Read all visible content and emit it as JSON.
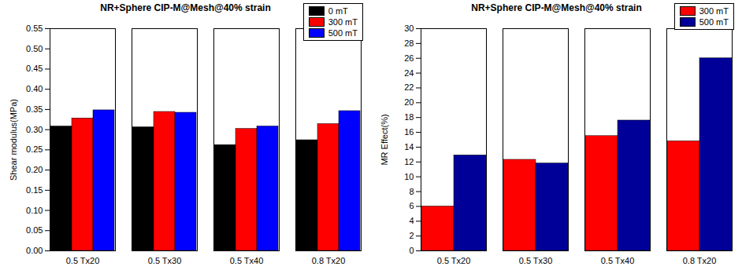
{
  "chart_data": [
    {
      "type": "bar",
      "title": "NR+Sphere CIP-M@Mesh@40% strain",
      "y_label": "Shear modulus(MPa)",
      "categories": [
        "0.5 Tx20",
        "0.5 Tx30",
        "0.5 Tx40",
        "0.8 Tx20"
      ],
      "series": [
        {
          "name": "0 mT",
          "color": "#000000",
          "values": [
            0.308,
            0.306,
            0.262,
            0.274
          ]
        },
        {
          "name": "300 mT",
          "color": "#ff0000",
          "values": [
            0.328,
            0.344,
            0.302,
            0.314
          ]
        },
        {
          "name": "500 mT",
          "color": "#0000ff",
          "values": [
            0.348,
            0.342,
            0.308,
            0.346
          ]
        }
      ],
      "ylim": [
        0,
        0.55
      ],
      "yticks": [
        {
          "value": 0,
          "label": "0.00"
        },
        {
          "value": 0.05,
          "label": "0.05"
        },
        {
          "value": 0.1,
          "label": "0.10"
        },
        {
          "value": 0.15,
          "label": "0.15"
        },
        {
          "value": 0.2,
          "label": "0.20"
        },
        {
          "value": 0.25,
          "label": "0.25"
        },
        {
          "value": 0.3,
          "label": "0.30"
        },
        {
          "value": 0.35,
          "label": "0.35"
        },
        {
          "value": 0.4,
          "label": "0.40"
        },
        {
          "value": 0.45,
          "label": "0.45"
        },
        {
          "value": 0.5,
          "label": "0.50"
        },
        {
          "value": 0.55,
          "label": "0.55"
        }
      ],
      "grid": false,
      "legend": "top-right"
    },
    {
      "type": "bar",
      "title": "NR+Sphere CIP-M@Mesh@40% strain",
      "y_label": "MR Effect(%)",
      "categories": [
        "0.5 Tx20",
        "0.5 Tx30",
        "0.5 Tx40",
        "0.8 Tx20"
      ],
      "series": [
        {
          "name": "300 mT",
          "color": "#ff0000",
          "values": [
            6.0,
            12.3,
            15.5,
            14.8
          ]
        },
        {
          "name": "500 mT",
          "color": "#000099",
          "values": [
            12.9,
            11.8,
            17.6,
            26.0
          ]
        }
      ],
      "ylim": [
        0,
        30
      ],
      "yticks": [
        0,
        2,
        4,
        6,
        8,
        10,
        12,
        14,
        16,
        18,
        20,
        22,
        24,
        26,
        28,
        30
      ],
      "grid": false,
      "legend": "top-right"
    }
  ]
}
